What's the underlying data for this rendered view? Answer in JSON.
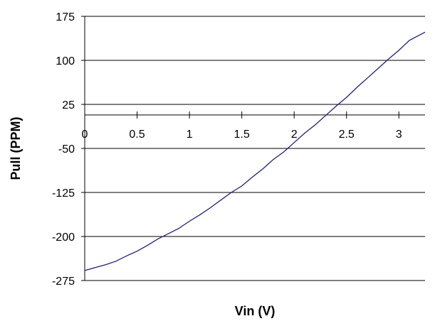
{
  "chart_data": {
    "type": "line",
    "title": "",
    "xlabel": "Vin (V)",
    "ylabel": "Pull (PPM)",
    "xlim": [
      0,
      3.25
    ],
    "ylim": [
      -275,
      175
    ],
    "x_ticks": [
      "0",
      "0.5",
      "1",
      "1.5",
      "2",
      "2.5",
      "3"
    ],
    "y_ticks": [
      "175",
      "100",
      "25",
      "-50",
      "-125",
      "-200",
      "-275"
    ],
    "x_axis_crosses_y_at": 7,
    "grid": "horizontal",
    "legend": "none",
    "line_color": "#1f1f7a",
    "series": [
      {
        "x": [
          0,
          0.1,
          0.2,
          0.3,
          0.4,
          0.5,
          0.6,
          0.7,
          0.8,
          0.9,
          1.0,
          1.1,
          1.2,
          1.3,
          1.4,
          1.5,
          1.6,
          1.7,
          1.8,
          1.9,
          2.0,
          2.1,
          2.2,
          2.3,
          2.4,
          2.5,
          2.6,
          2.7,
          2.8,
          2.9,
          3.0,
          3.1,
          3.25
        ],
        "values": [
          -258,
          -253,
          -248,
          -242,
          -233,
          -225,
          -215,
          -204,
          -195,
          -186,
          -174,
          -163,
          -151,
          -138,
          -125,
          -114,
          -99,
          -85,
          -69,
          -56,
          -40,
          -24,
          -10,
          6,
          22,
          37,
          54,
          70,
          86,
          102,
          117,
          134,
          148
        ]
      }
    ]
  }
}
